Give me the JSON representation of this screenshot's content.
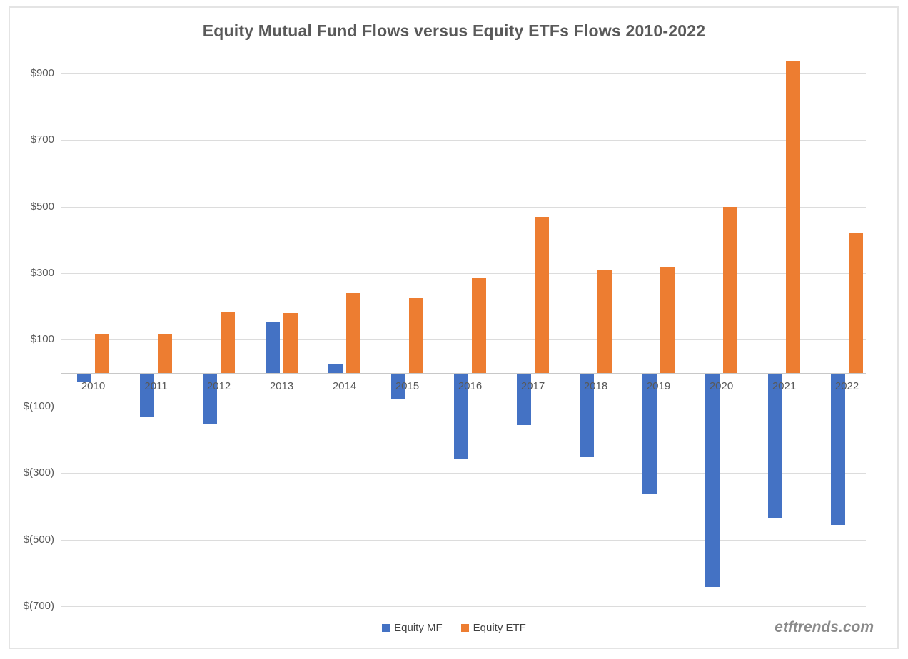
{
  "page": {
    "watermark": "etftrends.com"
  },
  "chart_data": {
    "type": "bar",
    "title": "Equity Mutual Fund Flows versus Equity ETFs Flows 2010-2022",
    "categories": [
      "2010",
      "2011",
      "2012",
      "2013",
      "2014",
      "2015",
      "2016",
      "2017",
      "2018",
      "2019",
      "2020",
      "2021",
      "2022"
    ],
    "series": [
      {
        "name": "Equity MF",
        "color": "#4472C4",
        "values": [
          -25,
          -130,
          -150,
          155,
          25,
          -75,
          -255,
          -155,
          -250,
          -360,
          -640,
          -435,
          -455
        ]
      },
      {
        "name": "Equity ETF",
        "color": "#ED7D31",
        "values": [
          115,
          115,
          185,
          180,
          240,
          225,
          285,
          470,
          310,
          320,
          500,
          935,
          420
        ]
      }
    ],
    "y_axis": {
      "min": -700,
      "max": 900,
      "ticks": [
        {
          "label": "$900",
          "value": 900
        },
        {
          "label": "$700",
          "value": 700
        },
        {
          "label": "$500",
          "value": 500
        },
        {
          "label": "$300",
          "value": 300
        },
        {
          "label": "$100",
          "value": 100
        },
        {
          "label": "$(100)",
          "value": -100
        },
        {
          "label": "$(300)",
          "value": -300
        },
        {
          "label": "$(500)",
          "value": -500
        },
        {
          "label": "$(700)",
          "value": -700
        }
      ]
    },
    "grid": true,
    "legend_position": "bottom"
  }
}
